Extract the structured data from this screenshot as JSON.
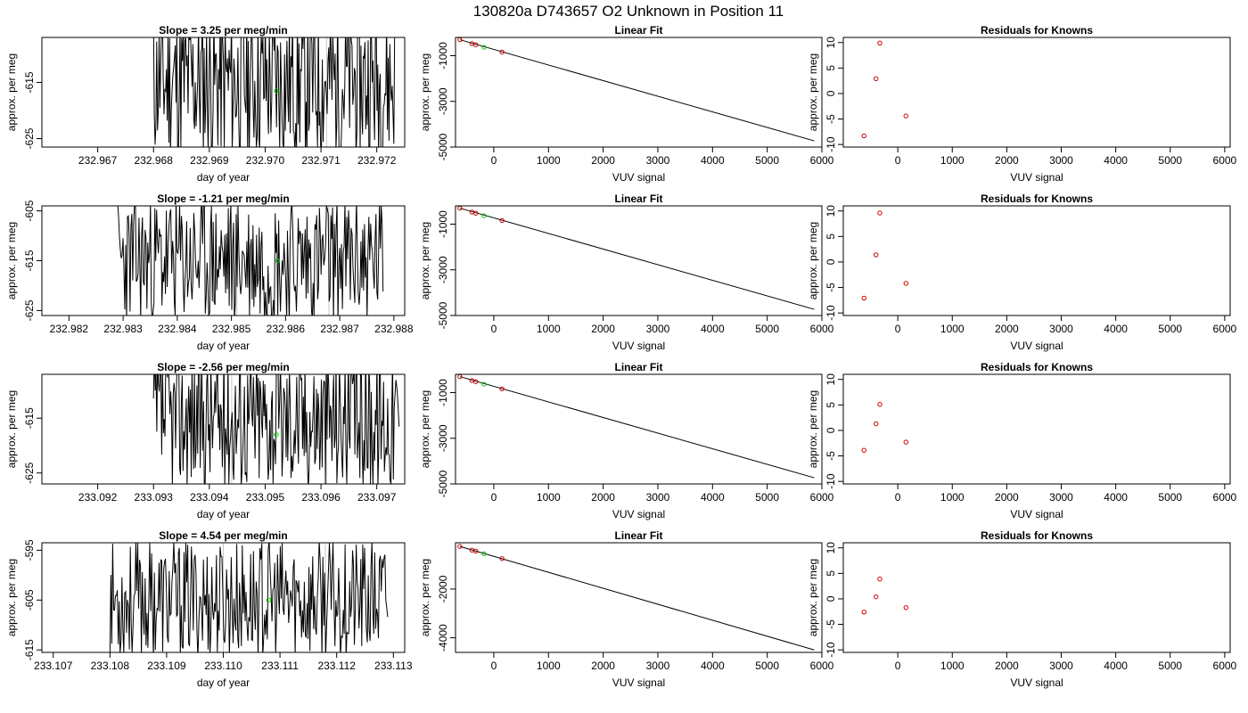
{
  "figure_title": "130820a      D743657   O2 Unknown in Position  11",
  "chart_data": [
    {
      "type": "line",
      "title": "Slope =  3.25  per meg/min",
      "xlabel": "day of year",
      "ylabel": "approx. per meg",
      "xlim": [
        232.966,
        232.9725
      ],
      "ylim": [
        -626.5,
        -607.0
      ],
      "xticks": [
        "232.967",
        "232.968",
        "232.969",
        "232.970",
        "232.971",
        "232.972"
      ],
      "yticks": [
        "-625",
        "-615"
      ],
      "ytick_values": [
        -625,
        -615
      ],
      "vlines": [
        232.9694,
        232.9711
      ],
      "series": [
        {
          "x": [
            232.968,
            232.969,
            232.97,
            232.971,
            232.972,
            232.97232
          ],
          "seed": 11,
          "center": -615,
          "amp": 14
        }
      ],
      "marker": {
        "x": 232.9702,
        "y": -616.5,
        "color": "#00cc00"
      }
    },
    {
      "type": "scatter",
      "title": "Linear Fit",
      "xlabel": "VUV signal",
      "ylabel": "approx. per meg",
      "xlim": [
        -700,
        6000
      ],
      "ylim": [
        -5000,
        -200
      ],
      "xticks": [
        "0",
        "1000",
        "2000",
        "3000",
        "4000",
        "5000",
        "6000"
      ],
      "yticks": [
        "-5000",
        "-3000",
        "-1000"
      ],
      "ytick_values": [
        -5000,
        -3000,
        -1000
      ],
      "fit_line": {
        "x": [
          -620,
          5860
        ],
        "y": [
          -300,
          -4730
        ]
      },
      "knowns": {
        "x": [
          -620,
          -400,
          -330,
          150
        ],
        "y": [
          -300,
          -470,
          -520,
          -840
        ]
      },
      "unknown": {
        "x": [
          -180
        ],
        "y": [
          -630
        ]
      }
    },
    {
      "type": "scatter",
      "title": "Residuals for Knowns",
      "xlabel": "VUV signal",
      "ylabel": "approx. per meg",
      "xlim": [
        -1000,
        6100
      ],
      "ylim": [
        -10.5,
        11
      ],
      "xticks": [
        "0",
        "1000",
        "2000",
        "3000",
        "4000",
        "5000",
        "6000"
      ],
      "yticks": [
        "-10",
        "-5",
        "0",
        "5",
        "10"
      ],
      "ytick_values": [
        -10,
        -5,
        0,
        5,
        10
      ],
      "points": {
        "x": [
          -620,
          -400,
          -330,
          150
        ],
        "y": [
          -8.3,
          2.9,
          9.9,
          -4.4
        ]
      }
    },
    {
      "type": "line",
      "title": "Slope =  -1.21  per meg/min",
      "xlabel": "day of year",
      "ylabel": "approx. per meg",
      "xlim": [
        232.9815,
        232.9882
      ],
      "ylim": [
        -626.0,
        -604.0
      ],
      "xticks": [
        "232.982",
        "232.983",
        "232.984",
        "232.985",
        "232.986",
        "232.987",
        "232.988"
      ],
      "yticks": [
        "-625",
        "-615",
        "-605"
      ],
      "ytick_values": [
        -625,
        -615,
        -605
      ],
      "vlines": [
        232.9851,
        232.9868
      ],
      "series": [
        {
          "x": [
            232.9829,
            232.984,
            232.985,
            232.986,
            232.987,
            232.9878
          ],
          "seed": 23,
          "center": -615,
          "amp": 13
        }
      ],
      "marker": {
        "x": 232.98585,
        "y": -615.0,
        "color": "#00cc00"
      }
    },
    {
      "type": "scatter",
      "title": "Linear Fit",
      "xlabel": "VUV signal",
      "ylabel": "approx. per meg",
      "xlim": [
        -700,
        6000
      ],
      "ylim": [
        -5000,
        -200
      ],
      "xticks": [
        "0",
        "1000",
        "2000",
        "3000",
        "4000",
        "5000",
        "6000"
      ],
      "yticks": [
        "-5000",
        "-3000",
        "-1000"
      ],
      "ytick_values": [
        -5000,
        -3000,
        -1000
      ],
      "fit_line": {
        "x": [
          -620,
          5860
        ],
        "y": [
          -300,
          -4730
        ]
      },
      "knowns": {
        "x": [
          -620,
          -400,
          -330,
          150
        ],
        "y": [
          -300,
          -470,
          -520,
          -840
        ]
      },
      "unknown": {
        "x": [
          -180
        ],
        "y": [
          -630
        ]
      }
    },
    {
      "type": "scatter",
      "title": "Residuals for Knowns",
      "xlabel": "VUV signal",
      "ylabel": "approx. per meg",
      "xlim": [
        -1000,
        6100
      ],
      "ylim": [
        -10.5,
        11
      ],
      "xticks": [
        "0",
        "1000",
        "2000",
        "3000",
        "4000",
        "5000",
        "6000"
      ],
      "yticks": [
        "-10",
        "-5",
        "0",
        "5",
        "10"
      ],
      "ytick_values": [
        -10,
        -5,
        0,
        5,
        10
      ],
      "points": {
        "x": [
          -620,
          -400,
          -330,
          150
        ],
        "y": [
          -7.1,
          1.4,
          9.6,
          -4.2
        ]
      }
    },
    {
      "type": "line",
      "title": "Slope =  -2.56  per meg/min",
      "xlabel": "day of year",
      "ylabel": "approx. per meg",
      "xlim": [
        233.091,
        233.0975
      ],
      "ylim": [
        -627.0,
        -607.0
      ],
      "xticks": [
        "233.092",
        "233.093",
        "233.094",
        "233.095",
        "233.096",
        "233.097"
      ],
      "yticks": [
        "-625",
        "-615"
      ],
      "ytick_values": [
        -625,
        -615
      ],
      "vlines": [
        233.0944,
        233.0961
      ],
      "series": [
        {
          "x": [
            233.093,
            233.094,
            233.095,
            233.096,
            233.097,
            233.0974
          ],
          "seed": 37,
          "center": -615,
          "amp": 13
        }
      ],
      "marker": {
        "x": 233.0952,
        "y": -618.0,
        "color": "#00cc00"
      }
    },
    {
      "type": "scatter",
      "title": "Linear Fit",
      "xlabel": "VUV signal",
      "ylabel": "approx. per meg",
      "xlim": [
        -700,
        6000
      ],
      "ylim": [
        -5000,
        -200
      ],
      "xticks": [
        "0",
        "1000",
        "2000",
        "3000",
        "4000",
        "5000",
        "6000"
      ],
      "yticks": [
        "-5000",
        "-3000",
        "-1000"
      ],
      "ytick_values": [
        -5000,
        -3000,
        -1000
      ],
      "fit_line": {
        "x": [
          -620,
          5860
        ],
        "y": [
          -300,
          -4730
        ]
      },
      "knowns": {
        "x": [
          -620,
          -400,
          -330,
          150
        ],
        "y": [
          -300,
          -470,
          -520,
          -840
        ]
      },
      "unknown": {
        "x": [
          -180
        ],
        "y": [
          -630
        ]
      }
    },
    {
      "type": "scatter",
      "title": "Residuals for Knowns",
      "xlabel": "VUV signal",
      "ylabel": "approx. per meg",
      "xlim": [
        -1000,
        6100
      ],
      "ylim": [
        -10.5,
        11
      ],
      "xticks": [
        "0",
        "1000",
        "2000",
        "3000",
        "4000",
        "5000",
        "6000"
      ],
      "yticks": [
        "-10",
        "-5",
        "0",
        "5",
        "10"
      ],
      "ytick_values": [
        -10,
        -5,
        0,
        5,
        10
      ],
      "points": {
        "x": [
          -620,
          -400,
          -330,
          150
        ],
        "y": [
          -3.9,
          1.3,
          5.1,
          -2.3
        ]
      }
    },
    {
      "type": "line",
      "title": "Slope =  4.54  per meg/min",
      "xlabel": "day of year",
      "ylabel": "approx. per meg",
      "xlim": [
        233.1068,
        233.1132
      ],
      "ylim": [
        -615.5,
        -593.5
      ],
      "xticks": [
        "233.107",
        "233.108",
        "233.109",
        "233.110",
        "233.111",
        "233.112",
        "233.113"
      ],
      "yticks": [
        "-615",
        "-605",
        "-595"
      ],
      "ytick_values": [
        -615,
        -605,
        -595
      ],
      "vlines": [
        233.11,
        233.1118
      ],
      "series": [
        {
          "x": [
            233.108,
            233.109,
            233.11,
            233.111,
            233.112,
            233.1129
          ],
          "seed": 53,
          "center": -605,
          "amp": 12
        }
      ],
      "marker": {
        "x": 233.1108,
        "y": -605.0,
        "color": "#00cc00"
      }
    },
    {
      "type": "scatter",
      "title": "Linear Fit",
      "xlabel": "VUV signal",
      "ylabel": "approx. per meg",
      "xlim": [
        -700,
        6000
      ],
      "ylim": [
        -4600,
        -100
      ],
      "xticks": [
        "0",
        "1000",
        "2000",
        "3000",
        "4000",
        "5000",
        "6000"
      ],
      "yticks": [
        "-4000",
        "-2000"
      ],
      "ytick_values": [
        -4000,
        -2000
      ],
      "fit_line": {
        "x": [
          -620,
          5860
        ],
        "y": [
          -250,
          -4500
        ]
      },
      "knowns": {
        "x": [
          -620,
          -400,
          -330,
          150
        ],
        "y": [
          -250,
          -400,
          -440,
          -750
        ]
      },
      "unknown": {
        "x": [
          -180
        ],
        "y": [
          -550
        ]
      }
    },
    {
      "type": "scatter",
      "title": "Residuals for Knowns",
      "xlabel": "VUV signal",
      "ylabel": "approx. per meg",
      "xlim": [
        -1000,
        6100
      ],
      "ylim": [
        -10.5,
        11
      ],
      "xticks": [
        "0",
        "1000",
        "2000",
        "3000",
        "4000",
        "5000",
        "6000"
      ],
      "yticks": [
        "-10",
        "-5",
        "0",
        "5",
        "10"
      ],
      "ytick_values": [
        -10,
        -5,
        0,
        5,
        10
      ],
      "points": {
        "x": [
          -620,
          -400,
          -330,
          150
        ],
        "y": [
          -2.6,
          0.4,
          3.9,
          -1.7
        ]
      }
    }
  ],
  "colors": {
    "line": "#000000",
    "known_point": "#cc0000",
    "unknown_point": "#00cc00",
    "vline": "#c8c8c8"
  }
}
